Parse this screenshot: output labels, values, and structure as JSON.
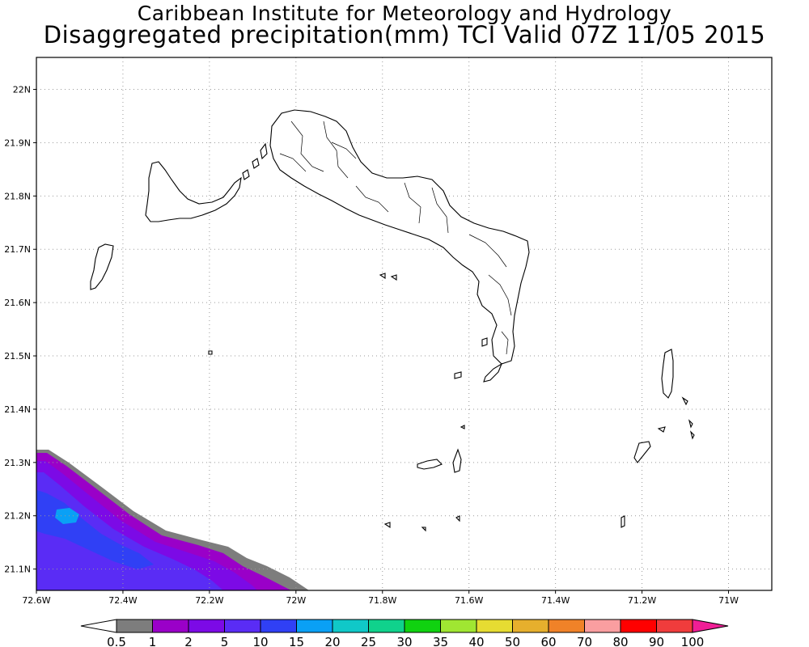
{
  "header": {
    "line1": "Caribbean Institute for Meteorology and Hydrology",
    "line2": "Disaggregated precipitation(mm) TCI Valid 07Z 11/05 2015"
  },
  "map": {
    "region": "Turks and Caicos Islands",
    "lon_range": [
      -72.6,
      -70.9
    ],
    "lat_range": [
      21.06,
      22.06
    ],
    "lon_ticks": [
      {
        "v": -72.6,
        "label": "72.6W"
      },
      {
        "v": -72.4,
        "label": "72.4W"
      },
      {
        "v": -72.2,
        "label": "72.2W"
      },
      {
        "v": -72.0,
        "label": "72W"
      },
      {
        "v": -71.8,
        "label": "71.8W"
      },
      {
        "v": -71.6,
        "label": "71.6W"
      },
      {
        "v": -71.4,
        "label": "71.4W"
      },
      {
        "v": -71.2,
        "label": "71.2W"
      },
      {
        "v": -71.0,
        "label": "71W"
      }
    ],
    "lat_ticks": [
      {
        "v": 22.0,
        "label": "22N"
      },
      {
        "v": 21.9,
        "label": "21.9N"
      },
      {
        "v": 21.8,
        "label": "21.8N"
      },
      {
        "v": 21.7,
        "label": "21.7N"
      },
      {
        "v": 21.6,
        "label": "21.6N"
      },
      {
        "v": 21.5,
        "label": "21.5N"
      },
      {
        "v": 21.4,
        "label": "21.4N"
      },
      {
        "v": 21.3,
        "label": "21.3N"
      },
      {
        "v": 21.2,
        "label": "21.2N"
      },
      {
        "v": 21.1,
        "label": "21.1N"
      }
    ],
    "grid": true,
    "land_outline_color": "#000000",
    "rain_field": {
      "location": "bottom-left corner",
      "max_level_mm": 15
    }
  },
  "colorbar": {
    "labels": [
      "0.5",
      "1",
      "2",
      "5",
      "10",
      "15",
      "20",
      "25",
      "30",
      "35",
      "40",
      "50",
      "60",
      "70",
      "80",
      "90",
      "100"
    ],
    "colors": [
      "#7d7d7d",
      "#9a00c8",
      "#7c0ae6",
      "#5a2cf5",
      "#3040f5",
      "#0aa0f5",
      "#10c8c8",
      "#10d28c",
      "#10d210",
      "#a0e632",
      "#e6dc32",
      "#e6af2d",
      "#f08228",
      "#fa9ea0",
      "#ff0000",
      "#f03c3c"
    ],
    "under_color": "#ffffff",
    "over_color": "#f01e96"
  }
}
